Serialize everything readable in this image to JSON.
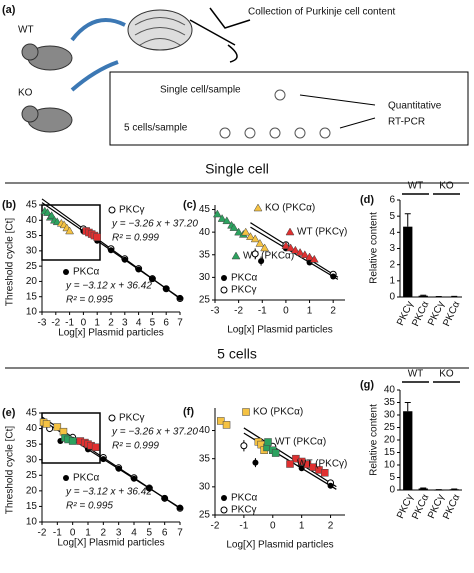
{
  "panel_a": {
    "label": "(a)",
    "wt": "WT",
    "ko": "KO",
    "collection": "Collection of Purkinje cell content",
    "single": "Single cell/sample",
    "five": "5 cells/sample",
    "qpcr": [
      "Quantitative",
      "RT-PCR"
    ]
  },
  "sections": [
    "Single cell",
    "5 cells"
  ],
  "chart_data": [
    {
      "type": "scatter",
      "label": "(b)",
      "xlabel": "Log[x] Plasmid particles",
      "ylabel": "Threshold cycle [Ct]",
      "xlim": [
        -3,
        7
      ],
      "xticks": [
        -3,
        -2,
        -1,
        0,
        1,
        2,
        3,
        4,
        5,
        6,
        7
      ],
      "ylim": [
        10,
        45
      ],
      "yticks": [
        10,
        15,
        20,
        25,
        30,
        35,
        40,
        45
      ],
      "annotations": [
        "y = −3.26 x + 37.20",
        "R² = 0.999",
        "y = −3.12 x + 36.42",
        "R² = 0.995"
      ],
      "series": [
        {
          "marker": "line",
          "color": "#000000",
          "x": [
            -3,
            7
          ],
          "values": [
            46.98,
            14.38
          ]
        },
        {
          "marker": "line",
          "color": "#000000",
          "x": [
            -3,
            7
          ],
          "values": [
            45.78,
            14.58
          ]
        },
        {
          "name": "PKCγ",
          "marker": "circle-open",
          "color": "#000000",
          "x": [
            0,
            1,
            2,
            3,
            4,
            5,
            6,
            7
          ],
          "values": [
            37.2,
            34,
            30.7,
            27.4,
            24.2,
            20.9,
            17.6,
            14.4
          ]
        },
        {
          "name": "PKCα",
          "marker": "circle-filled",
          "color": "#000000",
          "x": [
            0,
            1,
            2,
            3,
            4,
            5,
            6,
            7
          ],
          "values": [
            36.4,
            33.3,
            30.2,
            27.1,
            23.9,
            20.8,
            17.7,
            14.6
          ]
        },
        {
          "marker": "triangle",
          "color": "#2ca25f",
          "x": [
            -2.8,
            -2.6,
            -2.4,
            -2.3,
            -2.1,
            -1.9
          ],
          "values": [
            43,
            42.5,
            41,
            41.5,
            40,
            39.5
          ]
        },
        {
          "marker": "triangle",
          "color": "#f5c242",
          "x": [
            -1.6,
            -1.4,
            -1.2,
            -1.0
          ],
          "values": [
            39,
            38.5,
            37.5,
            36.5
          ]
        },
        {
          "marker": "square",
          "color": "#e03030",
          "x": [
            0.2,
            0.4,
            0.6,
            0.8,
            1.0
          ],
          "values": [
            36.5,
            36,
            35.5,
            35,
            34.5
          ]
        }
      ]
    },
    {
      "type": "scatter",
      "label": "(c)",
      "xlabel": "Log[x] Plasmid particles",
      "xlim": [
        -3,
        2.5
      ],
      "xticks": [
        -3,
        -2,
        -1,
        0,
        1,
        2
      ],
      "ylim": [
        25,
        46
      ],
      "yticks": [
        25,
        30,
        35,
        40,
        45
      ],
      "series": [
        {
          "marker": "line",
          "color": "#000000",
          "x": [
            -1.5,
            2.2
          ],
          "values": [
            42.09,
            30.03
          ]
        },
        {
          "marker": "line",
          "color": "#000000",
          "x": [
            -1.5,
            2.2
          ],
          "values": [
            41.1,
            29.56
          ]
        },
        {
          "name": "PKCγ",
          "marker": "circle-open",
          "color": "#000000",
          "x": [
            0,
            1,
            2
          ],
          "values": [
            37.2,
            34,
            30.7
          ]
        },
        {
          "name": "PKCα",
          "marker": "circle-filled",
          "color": "#000000",
          "x": [
            0,
            1,
            2
          ],
          "values": [
            36.4,
            33.3,
            30.2
          ]
        },
        {
          "name": "WT (PKCα)",
          "marker": "triangle",
          "color": "#2ca25f",
          "x": [
            -2.9,
            -2.7,
            -2.5,
            -2.3,
            -2.2,
            -2.0,
            -1.8
          ],
          "values": [
            44,
            43,
            42.5,
            41.5,
            41,
            40,
            39.5
          ]
        },
        {
          "name": "KO (PKCα)",
          "marker": "triangle",
          "color": "#f5c242",
          "x": [
            -1.7,
            -1.5,
            -1.3,
            -1.1,
            -0.9
          ],
          "values": [
            40,
            39,
            38.5,
            37.5,
            36.5
          ]
        },
        {
          "name": "WT (PKCγ)",
          "marker": "triangle",
          "color": "#e03030",
          "x": [
            0,
            0.2,
            0.4,
            0.6,
            0.8,
            1.0,
            1.2
          ],
          "values": [
            37,
            36.5,
            36,
            35.5,
            35,
            34.5,
            34
          ]
        },
        {
          "marker": "circle-filled",
          "color": "#000000",
          "x": [
            -1.05
          ],
          "values": [
            33.6
          ],
          "errors": [
            1.0
          ]
        },
        {
          "marker": "circle-open",
          "color": "#000000",
          "x": [
            -1.3
          ],
          "values": [
            35.2
          ],
          "errors": [
            1.2
          ]
        }
      ]
    },
    {
      "type": "bar",
      "label": "(d)",
      "ylabel": "Relative content",
      "categories": [
        "PKCγ",
        "PKCα",
        "PKCγ",
        "PKCα"
      ],
      "values": [
        4.35,
        0.08,
        0.02,
        0.03
      ],
      "errors": [
        0.8,
        0.03,
        0.01,
        0.01
      ],
      "color": "#000000",
      "ylim": [
        0,
        6
      ],
      "yticks": [
        0,
        1,
        2,
        3,
        4,
        5,
        6
      ],
      "groups": [
        "WT",
        "KO"
      ]
    },
    {
      "type": "scatter",
      "label": "(e)",
      "xlabel": "Log[X] Plasmid particles",
      "ylabel": "Threshold cycle [Ct]",
      "xlim": [
        -2,
        7
      ],
      "xticks": [
        -2,
        -1,
        0,
        1,
        2,
        3,
        4,
        5,
        6,
        7
      ],
      "ylim": [
        10,
        45
      ],
      "yticks": [
        10,
        15,
        20,
        25,
        30,
        35,
        40,
        45
      ],
      "annotations": [
        "y = −3.26 x + 37.20",
        "R² = 0.999",
        "y = −3.12 x + 36.42",
        "R² = 0.995"
      ],
      "series": [
        {
          "marker": "line",
          "color": "#000000",
          "x": [
            -2,
            7
          ],
          "values": [
            43.72,
            14.38
          ]
        },
        {
          "marker": "line",
          "color": "#000000",
          "x": [
            -2,
            7
          ],
          "values": [
            42.66,
            14.58
          ]
        },
        {
          "name": "PKCγ",
          "marker": "circle-open",
          "color": "#000000",
          "x": [
            -1.5,
            0,
            1,
            2,
            3,
            4,
            5,
            6,
            7
          ],
          "values": [
            40,
            37.2,
            34,
            30.7,
            27.4,
            24.2,
            20.9,
            17.6,
            14.4
          ]
        },
        {
          "name": "PKCα",
          "marker": "circle-filled",
          "color": "#000000",
          "x": [
            -0.8,
            0,
            1,
            2,
            3,
            4,
            5,
            6,
            7
          ],
          "values": [
            36,
            36.4,
            33.3,
            30.2,
            27.1,
            23.9,
            20.8,
            17.7,
            14.6
          ]
        },
        {
          "marker": "square",
          "color": "#f5c242",
          "x": [
            -1.9,
            -1.7,
            -1.0,
            -0.6
          ],
          "values": [
            42,
            41.5,
            40.5,
            39
          ]
        },
        {
          "marker": "square",
          "color": "#2ca25f",
          "x": [
            -0.5,
            -0.3,
            0
          ],
          "values": [
            37,
            36.5,
            36
          ]
        },
        {
          "marker": "square",
          "color": "#e03030",
          "x": [
            0.5,
            0.8,
            1.0,
            1.2,
            1.5
          ],
          "values": [
            36,
            35.5,
            35,
            34.5,
            34
          ]
        }
      ]
    },
    {
      "type": "scatter",
      "label": "(f)",
      "xlabel": "Log[X] Plasmid particles",
      "xlim": [
        -2,
        2.5
      ],
      "xticks": [
        -2,
        -1,
        0,
        1,
        2
      ],
      "ylim": [
        25,
        44
      ],
      "yticks": [
        25,
        30,
        35,
        40
      ],
      "series": [
        {
          "marker": "line",
          "color": "#000000",
          "x": [
            -1.0,
            2.2
          ],
          "values": [
            40.46,
            30.03
          ]
        },
        {
          "marker": "line",
          "color": "#000000",
          "x": [
            -1.0,
            2.2
          ],
          "values": [
            39.54,
            29.56
          ]
        },
        {
          "name": "PKCγ",
          "marker": "circle-open",
          "color": "#000000",
          "x": [
            0,
            1,
            2
          ],
          "values": [
            37.2,
            34,
            30.7
          ]
        },
        {
          "name": "PKCα",
          "marker": "circle-filled",
          "color": "#000000",
          "x": [
            0,
            1,
            2
          ],
          "values": [
            36.4,
            33.3,
            30.2
          ]
        },
        {
          "name": "KO (PKCα)",
          "marker": "square",
          "color": "#f5c242",
          "x": [
            -1.8,
            -1.6,
            -0.5,
            -0.4,
            -0.3
          ],
          "values": [
            41.7,
            41,
            38,
            37.5,
            36.5
          ]
        },
        {
          "name": "WT (PKCα)",
          "marker": "square",
          "color": "#2ca25f",
          "x": [
            -0.2,
            0,
            0.1
          ],
          "values": [
            37,
            36.5,
            36
          ]
        },
        {
          "name": "WT (PKCγ)",
          "marker": "square",
          "color": "#e03030",
          "x": [
            0.8,
            1.0,
            1.2,
            1.4,
            1.6,
            1.8
          ],
          "values": [
            35,
            34.5,
            34,
            33.5,
            33,
            32.5
          ]
        },
        {
          "marker": "circle-open",
          "color": "#000000",
          "x": [
            -1.0
          ],
          "values": [
            37.3
          ],
          "errors": [
            1.0
          ]
        },
        {
          "marker": "circle-filled",
          "color": "#000000",
          "x": [
            -0.6
          ],
          "values": [
            34.3
          ],
          "errors": [
            0.8
          ]
        }
      ]
    },
    {
      "type": "bar",
      "label": "(g)",
      "ylabel": "Relative content",
      "categories": [
        "PKCγ",
        "PKCα",
        "PKCγ",
        "PKCα"
      ],
      "values": [
        31.5,
        0.6,
        0.1,
        0.3
      ],
      "errors": [
        3.5,
        0.2,
        0.05,
        0.1
      ],
      "color": "#000000",
      "ylim": [
        0,
        40
      ],
      "yticks": [
        0,
        5,
        10,
        15,
        20,
        25,
        30,
        35,
        40
      ],
      "groups": [
        "WT",
        "KO"
      ]
    }
  ]
}
